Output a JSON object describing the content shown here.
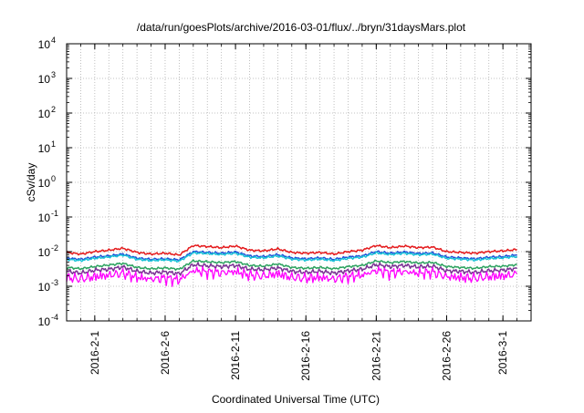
{
  "chart_data": {
    "type": "line",
    "title": "/data/run/goesPlots/archive/2016-03-01/flux/../bryn/31daysMars.plot",
    "xlabel": "Coordinated Universal Time (UTC)",
    "ylabel": "cSv/day",
    "yscale": "log",
    "ylim": [
      0.0001,
      10000
    ],
    "xlim": [
      "2016-01-30",
      "2016-03-03"
    ],
    "grid": true,
    "legend": "none",
    "x_ticks": [
      "2016-2-1",
      "2016-2-6",
      "2016-2-11",
      "2016-2-16",
      "2016-2-21",
      "2016-2-26",
      "2016-3-1"
    ],
    "y_ticks": [
      {
        "base": "10",
        "exp": "-4",
        "value": 0.0001
      },
      {
        "base": "10",
        "exp": "-3",
        "value": 0.001
      },
      {
        "base": "10",
        "exp": "-2",
        "value": 0.01
      },
      {
        "base": "10",
        "exp": "-1",
        "value": 0.1
      },
      {
        "base": "10",
        "exp": "0",
        "value": 1
      },
      {
        "base": "10",
        "exp": "1",
        "value": 10
      },
      {
        "base": "10",
        "exp": "2",
        "value": 100
      },
      {
        "base": "10",
        "exp": "3",
        "value": 1000
      },
      {
        "base": "10",
        "exp": "4",
        "value": 10000
      }
    ],
    "x": [
      "2016-01-30",
      "2016-01-31",
      "2016-02-01",
      "2016-02-02",
      "2016-02-03",
      "2016-02-04",
      "2016-02-05",
      "2016-02-06",
      "2016-02-07",
      "2016-02-08",
      "2016-02-09",
      "2016-02-10",
      "2016-02-11",
      "2016-02-12",
      "2016-02-13",
      "2016-02-14",
      "2016-02-15",
      "2016-02-16",
      "2016-02-17",
      "2016-02-18",
      "2016-02-19",
      "2016-02-20",
      "2016-02-21",
      "2016-02-22",
      "2016-02-23",
      "2016-02-24",
      "2016-02-25",
      "2016-02-26",
      "2016-02-27",
      "2016-02-28",
      "2016-02-29",
      "2016-03-01",
      "2016-03-02"
    ],
    "series": [
      {
        "color": "#e41a1c",
        "values": [
          0.0095,
          0.0085,
          0.01,
          0.011,
          0.0125,
          0.0095,
          0.0085,
          0.009,
          0.008,
          0.015,
          0.014,
          0.013,
          0.0145,
          0.011,
          0.0105,
          0.012,
          0.0095,
          0.009,
          0.0095,
          0.0085,
          0.01,
          0.011,
          0.015,
          0.013,
          0.0145,
          0.013,
          0.0135,
          0.01,
          0.0095,
          0.009,
          0.01,
          0.0105,
          0.0115
        ]
      },
      {
        "color": "#1e4fd8",
        "values": [
          0.0065,
          0.006,
          0.007,
          0.0075,
          0.0085,
          0.0065,
          0.006,
          0.0062,
          0.0058,
          0.01,
          0.0095,
          0.009,
          0.0098,
          0.0075,
          0.0072,
          0.0082,
          0.0066,
          0.0062,
          0.0066,
          0.006,
          0.007,
          0.0075,
          0.01,
          0.009,
          0.0098,
          0.0088,
          0.0092,
          0.007,
          0.0066,
          0.0062,
          0.0069,
          0.0072,
          0.008
        ]
      },
      {
        "color": "#19c2d6",
        "values": [
          0.006,
          0.0055,
          0.0064,
          0.007,
          0.008,
          0.006,
          0.0055,
          0.0058,
          0.0053,
          0.0092,
          0.0088,
          0.0083,
          0.009,
          0.0069,
          0.0066,
          0.0075,
          0.0061,
          0.0057,
          0.0061,
          0.0055,
          0.0064,
          0.0069,
          0.0092,
          0.0083,
          0.009,
          0.0081,
          0.0085,
          0.0064,
          0.0061,
          0.0057,
          0.0063,
          0.0066,
          0.0073
        ]
      },
      {
        "color": "#2ca25f",
        "values": [
          0.0035,
          0.0032,
          0.0037,
          0.0041,
          0.0046,
          0.0035,
          0.0032,
          0.0034,
          0.0031,
          0.0054,
          0.0051,
          0.0048,
          0.0052,
          0.004,
          0.0038,
          0.0044,
          0.0035,
          0.0033,
          0.0035,
          0.0032,
          0.0037,
          0.004,
          0.0054,
          0.0048,
          0.0052,
          0.0047,
          0.0049,
          0.0037,
          0.0035,
          0.0033,
          0.0037,
          0.0038,
          0.0042
        ]
      },
      {
        "color": "#7b3294",
        "values": [
          0.0027,
          0.0024,
          0.0029,
          0.0031,
          0.0036,
          0.0027,
          0.0024,
          0.0026,
          0.0023,
          0.0042,
          0.0039,
          0.0037,
          0.004,
          0.0031,
          0.003,
          0.0034,
          0.0027,
          0.0025,
          0.0027,
          0.0024,
          0.0028,
          0.0031,
          0.0042,
          0.0037,
          0.004,
          0.0036,
          0.0038,
          0.0028,
          0.0027,
          0.0025,
          0.0028,
          0.0029,
          0.0033
        ]
      },
      {
        "color": "#ff00ff",
        "values": [
          0.0019,
          0.0017,
          0.002,
          0.0022,
          0.0025,
          0.0019,
          0.0017,
          0.0018,
          0.0016,
          0.003,
          0.0027,
          0.0026,
          0.0028,
          0.0022,
          0.0021,
          0.0024,
          0.0019,
          0.0018,
          0.0019,
          0.0017,
          0.002,
          0.0022,
          0.003,
          0.0026,
          0.0028,
          0.0025,
          0.0027,
          0.002,
          0.0019,
          0.0018,
          0.002,
          0.0021,
          0.0023
        ]
      }
    ]
  }
}
